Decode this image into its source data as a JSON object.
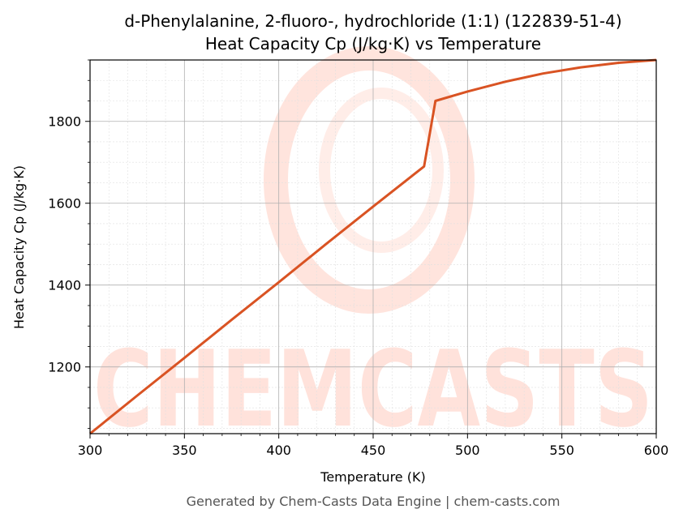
{
  "colors": {
    "line": "#d95323",
    "grid_major": "#b0b0b0",
    "grid_minor": "#e0e0e0",
    "watermark": "#ffd9cf"
  },
  "watermark": {
    "text": "CHEMCASTS"
  },
  "footer": "Generated by Chem-Casts Data Engine | chem-casts.com",
  "chart_data": {
    "type": "line",
    "title": "d-Phenylalanine, 2-fluoro-, hydrochloride (1:1) (122839-51-4)",
    "subtitle": "Heat Capacity Cp (J/kg·K) vs Temperature",
    "xlabel": "Temperature (K)",
    "ylabel": "Heat Capacity Cp (J/kg·K)",
    "xlim": [
      300,
      600
    ],
    "ylim": [
      1037,
      1950
    ],
    "x_ticks": [
      300,
      350,
      400,
      450,
      500,
      550,
      600
    ],
    "y_ticks": [
      1200,
      1400,
      1600,
      1800
    ],
    "grid": true,
    "legend": "none",
    "series": [
      {
        "x": [
          300,
          325,
          350,
          375,
          400,
          425,
          450,
          477,
          483,
          500,
          520,
          540,
          560,
          580,
          600
        ],
        "y": [
          1037,
          1130,
          1222,
          1315,
          1407,
          1500,
          1592,
          1690,
          1850,
          1873,
          1897,
          1917,
          1932,
          1943,
          1950
        ]
      }
    ]
  }
}
